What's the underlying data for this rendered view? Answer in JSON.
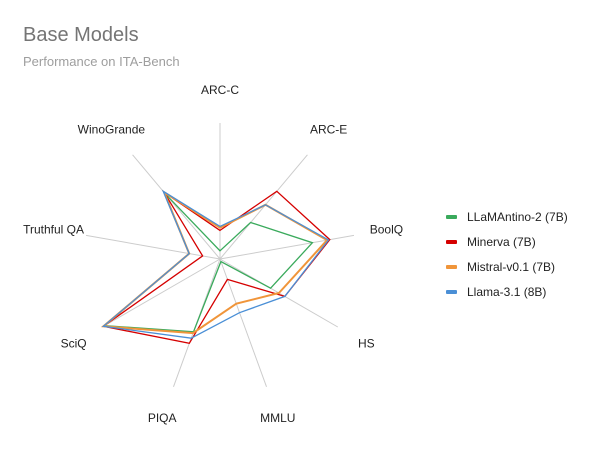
{
  "header": {
    "title": "Base Models",
    "subtitle": "Performance on ITA-Bench"
  },
  "legend": [
    {
      "name": "LLaMAntino-2 (7B)",
      "color": "#3aaa5c"
    },
    {
      "name": "Minerva (7B)",
      "color": "#d50000"
    },
    {
      "name": "Mistral-v0.1 (7B)",
      "color": "#f0953a"
    },
    {
      "name": "Llama-3.1 (8B)",
      "color": "#4a8fd6"
    }
  ],
  "chart_data": {
    "type": "radar",
    "title": "Base Models",
    "subtitle": "Performance on ITA-Bench",
    "categories": [
      "ARC-C",
      "ARC-E",
      "BoolQ",
      "HS",
      "MMLU",
      "PIQA",
      "SciQ",
      "Truthful QA",
      "WinoGrande"
    ],
    "value_scale": "relative radial position (0 = center, 100 = outer edge); no radial tick labels shown",
    "series": [
      {
        "name": "LLaMAntino-2 (7B)",
        "color": "#3aaa5c",
        "values": [
          6,
          35,
          69,
          43,
          2,
          57,
          98,
          23,
          63
        ]
      },
      {
        "name": "Minerva (7B)",
        "color": "#d50000",
        "values": [
          21,
          65,
          82,
          55,
          16,
          66,
          99,
          13,
          64
        ]
      },
      {
        "name": "Mistral-v0.1 (7B)",
        "color": "#f0953a",
        "values": [
          23,
          52,
          80,
          50,
          35,
          58,
          99,
          23,
          64
        ]
      },
      {
        "name": "Llama-3.1 (8B)",
        "color": "#4a8fd6",
        "values": [
          24,
          52,
          81,
          55,
          42,
          62,
          99,
          23,
          65
        ]
      }
    ],
    "grid": "spokes only",
    "legend_position": "right"
  }
}
